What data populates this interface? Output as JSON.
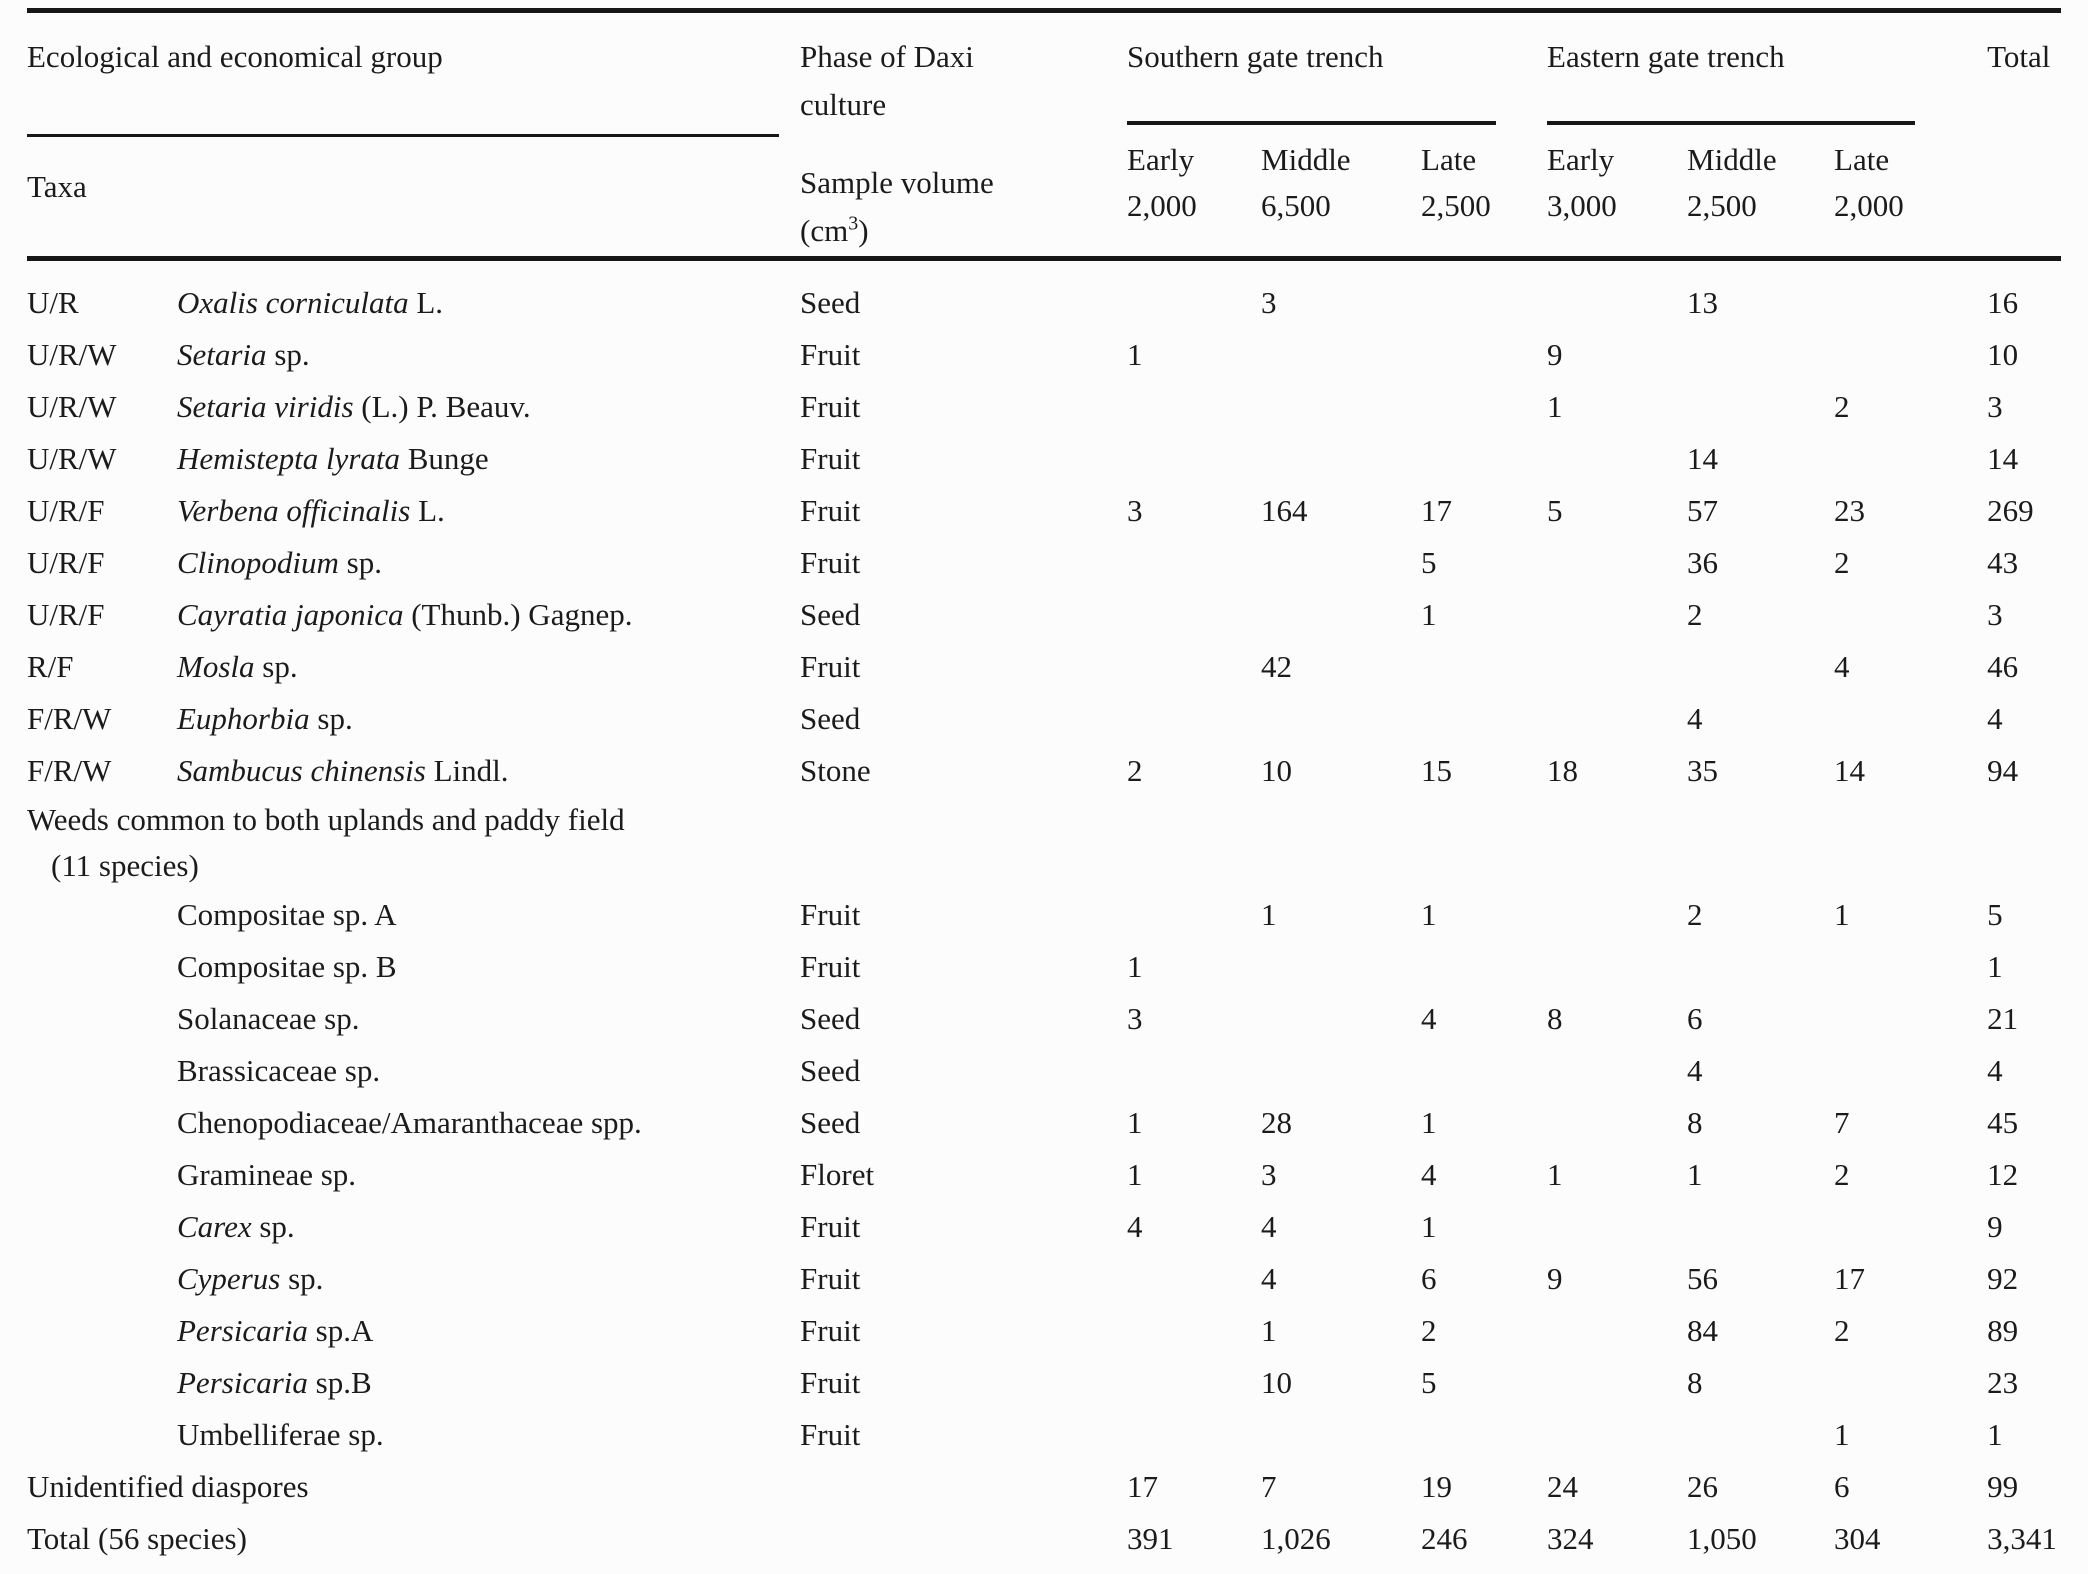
{
  "header": {
    "group_header": "Ecological and economical group",
    "taxa_label": "Taxa",
    "phase_label": "Phase of Daxi culture",
    "sample_volume_label": "Sample volume",
    "sample_volume_unit_pre": "(cm",
    "sample_volume_unit_sup": "3",
    "sample_volume_unit_post": ")",
    "southern": {
      "label": "Southern gate trench",
      "periods": [
        {
          "name": "Early",
          "volume": "2,000"
        },
        {
          "name": "Middle",
          "volume": "6,500"
        },
        {
          "name": "Late",
          "volume": "2,500"
        }
      ]
    },
    "eastern": {
      "label": "Eastern gate trench",
      "periods": [
        {
          "name": "Early",
          "volume": "3,000"
        },
        {
          "name": "Middle",
          "volume": "2,500"
        },
        {
          "name": "Late",
          "volume": "2,000"
        }
      ]
    },
    "total_label": "Total"
  },
  "rows": [
    {
      "type": "data",
      "group": "U/R",
      "taxon_italic": "Oxalis corniculata",
      "taxon_roman": "L.",
      "phase": "Seed",
      "values": [
        "",
        "3",
        "",
        "",
        "13",
        "",
        "16"
      ]
    },
    {
      "type": "data",
      "group": "U/R/W",
      "taxon_italic": "Setaria",
      "taxon_roman": "sp.",
      "phase": "Fruit",
      "values": [
        "1",
        "",
        "",
        "9",
        "",
        "",
        "10"
      ]
    },
    {
      "type": "data",
      "group": "U/R/W",
      "taxon_italic": "Setaria viridis",
      "taxon_roman": "(L.) P. Beauv.",
      "phase": "Fruit",
      "values": [
        "",
        "",
        "",
        "1",
        "",
        "2",
        "3"
      ]
    },
    {
      "type": "data",
      "group": "U/R/W",
      "taxon_italic": "Hemistepta lyrata",
      "taxon_roman": "Bunge",
      "phase": "Fruit",
      "values": [
        "",
        "",
        "",
        "",
        "14",
        "",
        "14"
      ]
    },
    {
      "type": "data",
      "group": "U/R/F",
      "taxon_italic": "Verbena officinalis",
      "taxon_roman": "L.",
      "phase": "Fruit",
      "values": [
        "3",
        "164",
        "17",
        "5",
        "57",
        "23",
        "269"
      ]
    },
    {
      "type": "data",
      "group": "U/R/F",
      "taxon_italic": "Clinopodium",
      "taxon_roman": "sp.",
      "phase": "Fruit",
      "values": [
        "",
        "",
        "5",
        "",
        "36",
        "2",
        "43"
      ]
    },
    {
      "type": "data",
      "group": "U/R/F",
      "taxon_italic": "Cayratia japonica",
      "taxon_roman": "(Thunb.) Gagnep.",
      "phase": "Seed",
      "values": [
        "",
        "",
        "1",
        "",
        "2",
        "",
        "3"
      ]
    },
    {
      "type": "data",
      "group": "R/F",
      "taxon_italic": "Mosla",
      "taxon_roman": "sp.",
      "phase": "Fruit",
      "values": [
        "",
        "42",
        "",
        "",
        "",
        "4",
        "46"
      ]
    },
    {
      "type": "data",
      "group": "F/R/W",
      "taxon_italic": "Euphorbia",
      "taxon_roman": "sp.",
      "phase": "Seed",
      "values": [
        "",
        "",
        "",
        "",
        "4",
        "",
        "4"
      ]
    },
    {
      "type": "data",
      "group": "F/R/W",
      "taxon_italic": "Sambucus chinensis",
      "taxon_roman": "Lindl.",
      "phase": "Stone",
      "values": [
        "2",
        "10",
        "15",
        "18",
        "35",
        "14",
        "94"
      ]
    },
    {
      "type": "section",
      "line1": "Weeds common to both uplands and paddy field",
      "line2": "(11 species)"
    },
    {
      "type": "data",
      "group": "",
      "taxon_italic": "",
      "taxon_roman": "Compositae sp. A",
      "phase": "Fruit",
      "values": [
        "",
        "1",
        "1",
        "",
        "2",
        "1",
        "5"
      ]
    },
    {
      "type": "data",
      "group": "",
      "taxon_italic": "",
      "taxon_roman": "Compositae sp. B",
      "phase": "Fruit",
      "values": [
        "1",
        "",
        "",
        "",
        "",
        "",
        "1"
      ]
    },
    {
      "type": "data",
      "group": "",
      "taxon_italic": "",
      "taxon_roman": "Solanaceae sp.",
      "phase": "Seed",
      "values": [
        "3",
        "",
        "4",
        "8",
        "6",
        "",
        "21"
      ]
    },
    {
      "type": "data",
      "group": "",
      "taxon_italic": "",
      "taxon_roman": "Brassicaceae sp.",
      "phase": "Seed",
      "values": [
        "",
        "",
        "",
        "",
        "4",
        "",
        "4"
      ]
    },
    {
      "type": "data",
      "group": "",
      "taxon_italic": "",
      "taxon_roman": "Chenopodiaceae/Amaranthaceae spp.",
      "phase": "Seed",
      "values": [
        "1",
        "28",
        "1",
        "",
        "8",
        "7",
        "45"
      ]
    },
    {
      "type": "data",
      "group": "",
      "taxon_italic": "",
      "taxon_roman": "Gramineae sp.",
      "phase": "Floret",
      "values": [
        "1",
        "3",
        "4",
        "1",
        "1",
        "2",
        "12"
      ]
    },
    {
      "type": "data",
      "group": "",
      "taxon_italic": "Carex",
      "taxon_roman": "sp.",
      "phase": "Fruit",
      "values": [
        "4",
        "4",
        "1",
        "",
        "",
        "",
        "9"
      ]
    },
    {
      "type": "data",
      "group": "",
      "taxon_italic": "Cyperus",
      "taxon_roman": "sp.",
      "phase": "Fruit",
      "values": [
        "",
        "4",
        "6",
        "9",
        "56",
        "17",
        "92"
      ]
    },
    {
      "type": "data",
      "group": "",
      "taxon_italic": "Persicaria",
      "taxon_roman": "sp.A",
      "phase": "Fruit",
      "values": [
        "",
        "1",
        "2",
        "",
        "84",
        "2",
        "89"
      ]
    },
    {
      "type": "data",
      "group": "",
      "taxon_italic": "Persicaria",
      "taxon_roman": "sp.B",
      "phase": "Fruit",
      "values": [
        "",
        "10",
        "5",
        "",
        "8",
        "",
        "23"
      ]
    },
    {
      "type": "data",
      "group": "",
      "taxon_italic": "",
      "taxon_roman": "Umbelliferae sp.",
      "phase": "Fruit",
      "values": [
        "",
        "",
        "",
        "",
        "",
        "1",
        "1"
      ]
    },
    {
      "type": "span",
      "label": "Unidentified diaspores",
      "values": [
        "17",
        "7",
        "19",
        "24",
        "26",
        "6",
        "99"
      ]
    },
    {
      "type": "span",
      "label": "Total (56 species)",
      "values": [
        "391",
        "1,026",
        "246",
        "324",
        "1,050",
        "304",
        "3,341"
      ]
    }
  ]
}
